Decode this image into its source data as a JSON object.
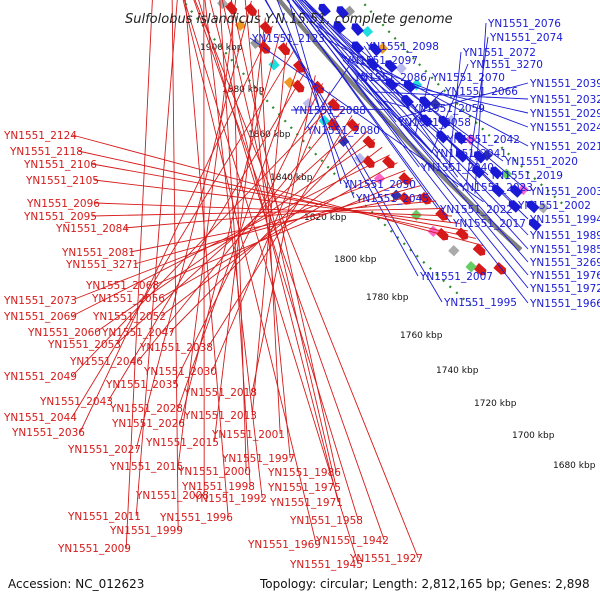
{
  "title": "Sulfolobus islandicus Y.N.15.51, complete genome",
  "accession": "Accession: NC_012623",
  "topology": "Topology: circular; Length: 2,812,165 bp; Genes: 2,898",
  "colors": {
    "forward": "#1a1ad6",
    "reverse": "#d61a1a",
    "backbone": "#7f7f7f",
    "guide": "#2e8b2e"
  },
  "ticks": [
    "1900 kbp",
    "1880 kbp",
    "1860 kbp",
    "1840 kbp",
    "1820 kbp",
    "1800 kbp",
    "1780 kbp",
    "1760 kbp",
    "1740 kbp",
    "1720 kbp",
    "1700 kbp",
    "1680 kbp"
  ],
  "blue_labels": [
    "YN1551_2123",
    "YN1551_2076",
    "YN1551_2074",
    "YN1551_2098",
    "YN1551_2072",
    "YN1551_2097",
    "YN1551_3270",
    "YN1551_2086",
    "YN1551_2070",
    "YN1551_2066",
    "YN1551_2039",
    "YN1551_2088",
    "YN1551_2059",
    "YN1551_2032",
    "YN1551_2058",
    "YN1551_2029",
    "YN1551_2080",
    "YN1551_2024",
    "YN1551_2042",
    "YN1551_2021",
    "YN1551_2041",
    "YN1551_2020",
    "YN1551_2040",
    "YN1551_2019",
    "YN1551_2050",
    "YN1551_2023",
    "YN1551_2003",
    "YN1551_2045",
    "YN1551_2002",
    "YN1551_2022",
    "YN1551_1994",
    "YN1551_2017",
    "YN1551_1989",
    "YN1551_1985",
    "YN1551_3269",
    "YN1551_2007",
    "YN1551_1976",
    "YN1551_1972",
    "YN1551_1995",
    "YN1551_1966"
  ],
  "red_labels": [
    "YN1551_2124",
    "YN1551_2118",
    "YN1551_2106",
    "YN1551_2105",
    "YN1551_2096",
    "YN1551_2095",
    "YN1551_2084",
    "YN1551_2081",
    "YN1551_3271",
    "YN1551_2068",
    "YN1551_2073",
    "YN1551_2056",
    "YN1551_2069",
    "YN1551_2052",
    "YN1551_2060",
    "YN1551_2047",
    "YN1551_2053",
    "YN1551_2038",
    "YN1551_2046",
    "YN1551_2049",
    "YN1551_2030",
    "YN1551_2035",
    "YN1551_2018",
    "YN1551_2043",
    "YN1551_2028",
    "YN1551_2044",
    "YN1551_2013",
    "YN1551_2026",
    "YN1551_2036",
    "YN1551_2015",
    "YN1551_2001",
    "YN1551_2027",
    "YN1551_1997",
    "YN1551_2016",
    "YN1551_2000",
    "YN1551_1986",
    "YN1551_1998",
    "YN1551_1975",
    "YN1551_2008",
    "YN1551_1992",
    "YN1551_1971",
    "YN1551_2011",
    "YN1551_1996",
    "YN1551_1999",
    "YN1551_1958",
    "YN1551_2009",
    "YN1551_1969",
    "YN1551_1942",
    "YN1551_1945",
    "YN1551_1927"
  ]
}
